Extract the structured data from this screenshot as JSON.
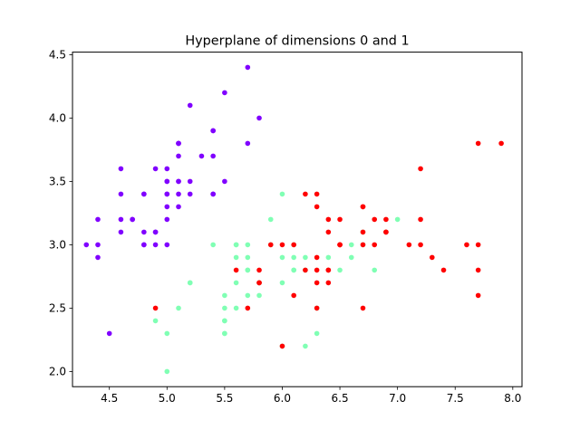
{
  "chart_data": {
    "type": "scatter",
    "title": "Hyperplane of dimensions 0 and 1",
    "xlabel": "",
    "ylabel": "",
    "xlim": [
      4.18,
      8.08
    ],
    "ylim": [
      1.88,
      4.52
    ],
    "x_ticks": [
      {
        "value": 4.5,
        "label": "4.5"
      },
      {
        "value": 5.0,
        "label": "5.0"
      },
      {
        "value": 5.5,
        "label": "5.5"
      },
      {
        "value": 6.0,
        "label": "6.0"
      },
      {
        "value": 6.5,
        "label": "6.5"
      },
      {
        "value": 7.0,
        "label": "7.0"
      },
      {
        "value": 7.5,
        "label": "7.5"
      },
      {
        "value": 8.0,
        "label": "8.0"
      }
    ],
    "y_ticks": [
      {
        "value": 2.0,
        "label": "2.0"
      },
      {
        "value": 2.5,
        "label": "2.5"
      },
      {
        "value": 3.0,
        "label": "3.0"
      },
      {
        "value": 3.5,
        "label": "3.5"
      },
      {
        "value": 4.0,
        "label": "4.0"
      },
      {
        "value": 4.5,
        "label": "4.5"
      }
    ],
    "grid": false,
    "legend": "none",
    "series": [
      {
        "color": "#8000ff",
        "points": [
          [
            5.1,
            3.5
          ],
          [
            4.9,
            3.0
          ],
          [
            4.7,
            3.2
          ],
          [
            4.6,
            3.1
          ],
          [
            5.0,
            3.6
          ],
          [
            5.4,
            3.9
          ],
          [
            4.6,
            3.4
          ],
          [
            5.0,
            3.4
          ],
          [
            4.4,
            2.9
          ],
          [
            4.9,
            3.1
          ],
          [
            5.4,
            3.7
          ],
          [
            4.8,
            3.4
          ],
          [
            4.8,
            3.0
          ],
          [
            4.3,
            3.0
          ],
          [
            5.8,
            4.0
          ],
          [
            5.7,
            4.4
          ],
          [
            5.4,
            3.9
          ],
          [
            5.1,
            3.5
          ],
          [
            5.7,
            3.8
          ],
          [
            5.1,
            3.8
          ],
          [
            5.4,
            3.4
          ],
          [
            5.1,
            3.7
          ],
          [
            4.6,
            3.6
          ],
          [
            5.1,
            3.3
          ],
          [
            4.8,
            3.4
          ],
          [
            5.0,
            3.0
          ],
          [
            5.0,
            3.4
          ],
          [
            5.2,
            3.5
          ],
          [
            5.2,
            3.4
          ],
          [
            4.7,
            3.2
          ],
          [
            4.8,
            3.1
          ],
          [
            5.4,
            3.4
          ],
          [
            5.2,
            4.1
          ],
          [
            5.5,
            4.2
          ],
          [
            4.9,
            3.1
          ],
          [
            5.0,
            3.2
          ],
          [
            5.5,
            3.5
          ],
          [
            4.9,
            3.6
          ],
          [
            4.4,
            3.0
          ],
          [
            5.1,
            3.4
          ],
          [
            5.0,
            3.5
          ],
          [
            4.5,
            2.3
          ],
          [
            4.4,
            3.2
          ],
          [
            5.0,
            3.5
          ],
          [
            5.1,
            3.8
          ],
          [
            4.8,
            3.0
          ],
          [
            5.1,
            3.8
          ],
          [
            4.6,
            3.2
          ],
          [
            5.3,
            3.7
          ],
          [
            5.0,
            3.3
          ]
        ]
      },
      {
        "color": "#80ffb4",
        "points": [
          [
            5.5,
            2.3
          ],
          [
            5.7,
            2.8
          ],
          [
            4.9,
            2.4
          ],
          [
            5.2,
            2.7
          ],
          [
            5.0,
            2.0
          ],
          [
            5.9,
            3.0
          ],
          [
            6.0,
            2.2
          ],
          [
            5.6,
            2.9
          ],
          [
            5.6,
            3.0
          ],
          [
            5.8,
            2.7
          ],
          [
            6.2,
            2.2
          ],
          [
            5.6,
            2.5
          ],
          [
            5.9,
            3.2
          ],
          [
            6.1,
            2.8
          ],
          [
            6.3,
            2.5
          ],
          [
            6.1,
            2.8
          ],
          [
            6.4,
            2.9
          ],
          [
            6.6,
            3.0
          ],
          [
            6.8,
            2.8
          ],
          [
            6.0,
            2.9
          ],
          [
            5.7,
            2.6
          ],
          [
            5.5,
            2.4
          ],
          [
            5.5,
            2.4
          ],
          [
            5.8,
            2.7
          ],
          [
            6.0,
            2.7
          ],
          [
            5.4,
            3.0
          ],
          [
            6.0,
            3.4
          ],
          [
            6.3,
            2.3
          ],
          [
            5.6,
            3.0
          ],
          [
            5.5,
            2.5
          ],
          [
            5.5,
            2.6
          ],
          [
            6.1,
            3.0
          ],
          [
            5.8,
            2.6
          ],
          [
            5.0,
            2.3
          ],
          [
            5.6,
            2.7
          ],
          [
            5.7,
            3.0
          ],
          [
            5.7,
            2.9
          ],
          [
            6.2,
            2.9
          ],
          [
            5.1,
            2.5
          ],
          [
            5.7,
            2.8
          ],
          [
            7.0,
            3.2
          ],
          [
            6.9,
            3.1
          ],
          [
            6.5,
            2.8
          ],
          [
            6.6,
            2.9
          ],
          [
            5.2,
            2.7
          ],
          [
            6.7,
            3.1
          ],
          [
            6.1,
            2.9
          ],
          [
            6.7,
            3.0
          ],
          [
            6.2,
            2.8
          ],
          [
            5.5,
            2.3
          ]
        ]
      },
      {
        "color": "#ff0000",
        "points": [
          [
            6.3,
            3.3
          ],
          [
            5.8,
            2.7
          ],
          [
            7.1,
            3.0
          ],
          [
            6.3,
            2.9
          ],
          [
            6.5,
            3.0
          ],
          [
            7.6,
            3.0
          ],
          [
            4.9,
            2.5
          ],
          [
            7.3,
            2.9
          ],
          [
            6.7,
            2.5
          ],
          [
            7.2,
            3.6
          ],
          [
            6.5,
            3.2
          ],
          [
            6.4,
            2.7
          ],
          [
            6.8,
            3.0
          ],
          [
            5.7,
            2.5
          ],
          [
            5.8,
            2.8
          ],
          [
            6.4,
            3.2
          ],
          [
            6.5,
            3.0
          ],
          [
            7.7,
            3.8
          ],
          [
            7.7,
            2.6
          ],
          [
            6.0,
            2.2
          ],
          [
            6.9,
            3.2
          ],
          [
            5.6,
            2.8
          ],
          [
            7.7,
            2.8
          ],
          [
            6.3,
            2.7
          ],
          [
            6.7,
            3.3
          ],
          [
            7.2,
            3.2
          ],
          [
            6.2,
            2.8
          ],
          [
            6.1,
            3.0
          ],
          [
            6.4,
            2.8
          ],
          [
            7.2,
            3.0
          ],
          [
            7.4,
            2.8
          ],
          [
            7.9,
            3.8
          ],
          [
            6.4,
            2.8
          ],
          [
            6.3,
            2.8
          ],
          [
            6.1,
            2.6
          ],
          [
            7.7,
            3.0
          ],
          [
            6.3,
            3.4
          ],
          [
            6.4,
            3.1
          ],
          [
            6.0,
            3.0
          ],
          [
            6.9,
            3.1
          ],
          [
            6.7,
            3.1
          ],
          [
            6.9,
            3.1
          ],
          [
            5.8,
            2.7
          ],
          [
            6.8,
            3.2
          ],
          [
            6.7,
            3.3
          ],
          [
            6.7,
            3.0
          ],
          [
            6.3,
            2.5
          ],
          [
            6.5,
            3.0
          ],
          [
            6.2,
            3.4
          ],
          [
            5.9,
            3.0
          ]
        ]
      }
    ]
  }
}
